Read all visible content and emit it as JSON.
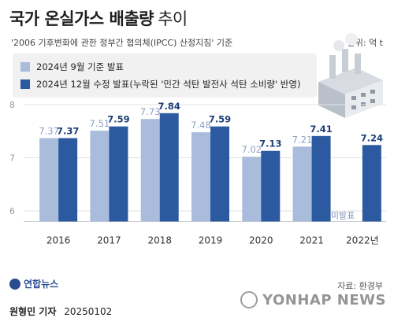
{
  "header": {
    "title_main": "국가 온실가스 배출량",
    "title_sub": "추이",
    "subtitle": "'2006 기후변화에 관한 정부간 협의체(IPCC) 산정지침' 기준",
    "unit": "단위: 억 t"
  },
  "chart_data": {
    "type": "bar",
    "categories": [
      "2016",
      "2017",
      "2018",
      "2019",
      "2020",
      "2021",
      "2022년"
    ],
    "ylim": [
      5.8,
      8.0
    ],
    "yticks": [
      "6",
      "7",
      "8"
    ],
    "grid": true,
    "legend_position": "top-left",
    "series": [
      {
        "name": "2024년 9월 기준 발표",
        "color": "#a9bcdc",
        "values": [
          7.37,
          7.51,
          7.73,
          7.48,
          7.02,
          7.21,
          null
        ],
        "labels": [
          "7.37",
          "7.51",
          "7.73",
          "7.48",
          "7.02",
          "7.21",
          ""
        ]
      },
      {
        "name": "2024년 12월 수정 발표(누락된 '민간 석탄 발전사 석탄 소비량' 반영)",
        "color": "#2c5aa0",
        "values": [
          7.37,
          7.59,
          7.84,
          7.59,
          7.13,
          7.41,
          7.24
        ],
        "labels": [
          "7.37",
          "7.59",
          "7.84",
          "7.59",
          "7.13",
          "7.41",
          "7.24"
        ]
      }
    ],
    "annotation": "미발표"
  },
  "footer": {
    "source": "자료: 환경부",
    "logo": "연합뉴스",
    "reporter": "원형민 기자",
    "date": "20250102",
    "watermark": "YONHAP NEWS"
  }
}
